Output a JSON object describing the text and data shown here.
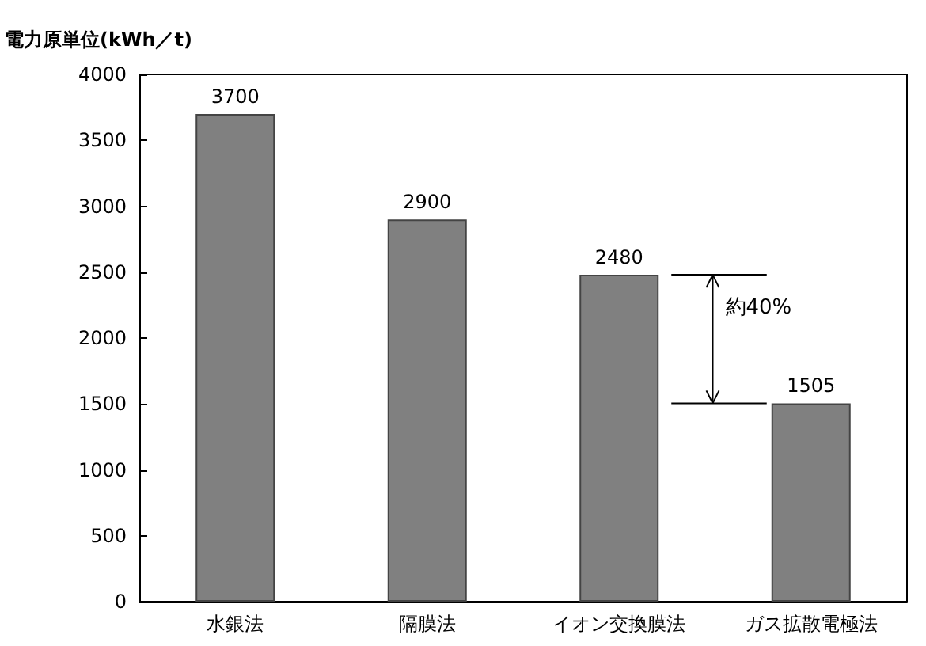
{
  "chart_data": {
    "type": "bar",
    "ylabel": "電力原単位(kWh／t)",
    "categories": [
      "水銀法",
      "隔膜法",
      "イオン交換膜法",
      "ガス拡散電極法"
    ],
    "values": [
      3700,
      2900,
      2480,
      1505
    ],
    "color": "#808080",
    "ylim": [
      0,
      4000
    ],
    "yticks": [
      0,
      500,
      1000,
      1500,
      2000,
      2500,
      3000,
      3500,
      4000
    ],
    "grid": false,
    "data_labels": true,
    "annotations": [
      "約40%"
    ]
  }
}
